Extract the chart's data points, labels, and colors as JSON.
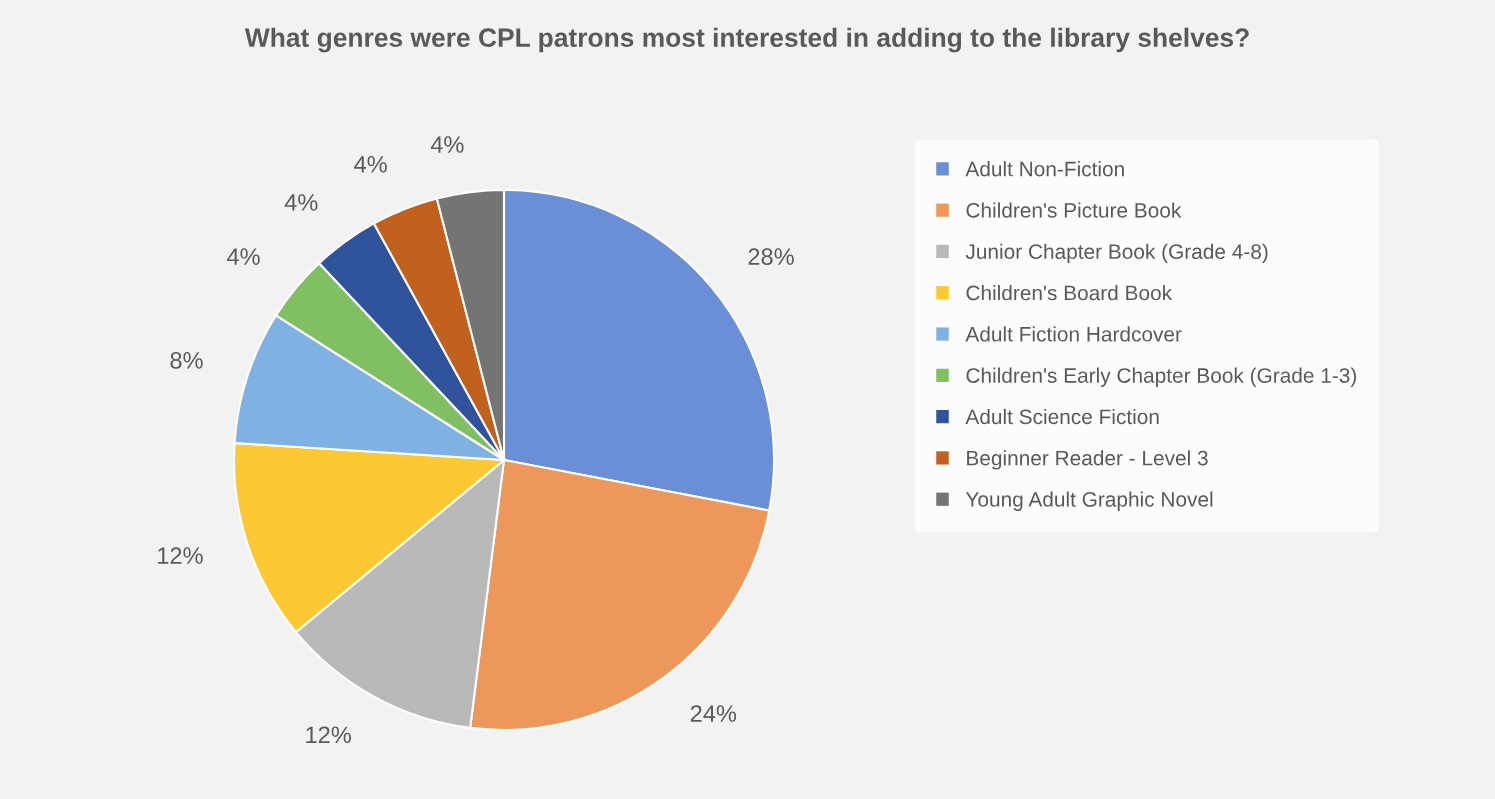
{
  "chart_data": {
    "type": "pie",
    "title": "What genres were CPL patrons most interested in adding to the library shelves?",
    "categories": [
      "Adult Non-Fiction",
      "Children's Picture Book",
      "Junior Chapter Book (Grade 4-8)",
      "Children's Board Book",
      "Adult Fiction Hardcover",
      "Children's Early Chapter Book (Grade 1-3)",
      "Adult Science Fiction",
      "Beginner Reader - Level 3",
      "Young Adult Graphic Novel"
    ],
    "values": [
      28,
      24,
      12,
      12,
      8,
      4,
      4,
      4,
      4
    ],
    "value_labels": [
      "28%",
      "24%",
      "12%",
      "12%",
      "8%",
      "4%",
      "4%",
      "4%",
      "4%"
    ],
    "colors": [
      "#6a8fd6",
      "#ee975a",
      "#b9b9b9",
      "#fdc832",
      "#7fb2e2",
      "#80c063",
      "#30549c",
      "#c2601e",
      "#747474"
    ],
    "legend": "right"
  }
}
